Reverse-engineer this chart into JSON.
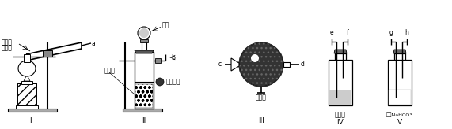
{
  "bg_color": "#ffffff",
  "lc": "#000000",
  "labels_I_1": "氯化铵",
  "labels_I_2": "熟石灰",
  "label_a": "a",
  "label_II_top": "盐酸",
  "label_b": "b",
  "label_II_left": "石灰石",
  "label_II_right": "多孔隔板",
  "label_c": "c",
  "label_d": "d",
  "label_III_bottom": "碱石灰",
  "label_e": "e",
  "label_f": "f",
  "label_IV_bottom": "浓硫酸",
  "label_g": "g",
  "label_h": "h",
  "label_V_bottom": "饱和NaHCO3",
  "roman_I": "I",
  "roman_II": "II",
  "roman_III": "III",
  "roman_IV": "IV",
  "roman_V": "V",
  "fig_width": 5.71,
  "fig_height": 1.64
}
